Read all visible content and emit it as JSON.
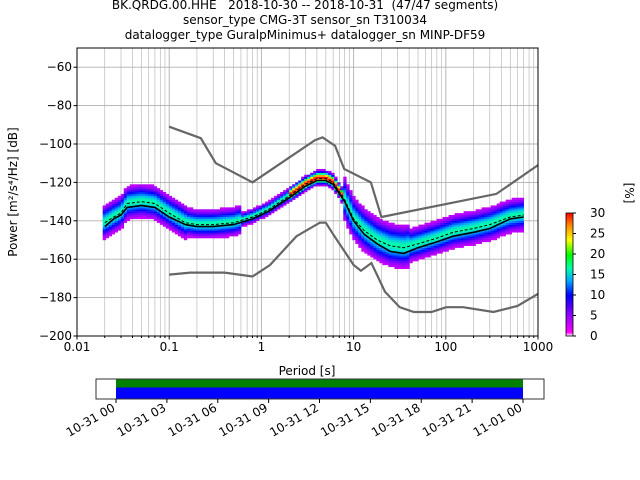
{
  "title_lines": [
    "BK.QRDG.00.HHE   2018-10-30 -- 2018-10-31  (47/47 segments)",
    "sensor_type CMG-3T sensor_sn T310034",
    "datalogger_type GuralpMinimus+ datalogger_sn MINP-DF59"
  ],
  "chart_data": {
    "type": "ppsd_heatmap",
    "xlabel": "Period [s]",
    "ylabel": "Power [m²/s⁴/Hz] [dB]",
    "xscale": "log",
    "xlim": [
      0.01,
      1000
    ],
    "ylim": [
      -200,
      -50
    ],
    "x_ticks": [
      0.01,
      0.1,
      1,
      10,
      100,
      1000
    ],
    "x_tick_labels": [
      "0.01",
      "0.1",
      "1",
      "10",
      "100",
      "1000"
    ],
    "y_ticks": [
      -200,
      -180,
      -160,
      -140,
      -120,
      -100,
      -80,
      -60
    ],
    "y_tick_labels": [
      "−200",
      "−180",
      "−160",
      "−140",
      "−120",
      "−100",
      "−80",
      "−60"
    ],
    "grid": true,
    "mean_curve": [
      [
        0.02,
        -143
      ],
      [
        0.025,
        -139
      ],
      [
        0.03,
        -137
      ],
      [
        0.035,
        -133
      ],
      [
        0.05,
        -132
      ],
      [
        0.07,
        -133
      ],
      [
        0.1,
        -138
      ],
      [
        0.15,
        -142
      ],
      [
        0.2,
        -143
      ],
      [
        0.3,
        -143
      ],
      [
        0.5,
        -142
      ],
      [
        0.8,
        -139
      ],
      [
        1.2,
        -135
      ],
      [
        2,
        -128
      ],
      [
        3,
        -122
      ],
      [
        4,
        -119
      ],
      [
        5,
        -119
      ],
      [
        6,
        -121
      ],
      [
        8,
        -130
      ],
      [
        10,
        -140
      ],
      [
        13,
        -147
      ],
      [
        18,
        -152
      ],
      [
        25,
        -156
      ],
      [
        35,
        -157
      ],
      [
        50,
        -154
      ],
      [
        80,
        -151
      ],
      [
        120,
        -148
      ],
      [
        200,
        -146
      ],
      [
        300,
        -144
      ],
      [
        500,
        -139
      ],
      [
        700,
        -138
      ]
    ],
    "mode_curve": [
      [
        0.02,
        -141
      ],
      [
        0.025,
        -138
      ],
      [
        0.03,
        -136
      ],
      [
        0.035,
        -131
      ],
      [
        0.05,
        -130
      ],
      [
        0.07,
        -131
      ],
      [
        0.1,
        -136
      ],
      [
        0.15,
        -141
      ],
      [
        0.2,
        -142
      ],
      [
        0.3,
        -142
      ],
      [
        0.5,
        -141
      ],
      [
        0.8,
        -138
      ],
      [
        1.2,
        -134
      ],
      [
        2,
        -127
      ],
      [
        3,
        -121
      ],
      [
        4,
        -118
      ],
      [
        5,
        -118
      ],
      [
        6,
        -120
      ],
      [
        8,
        -129
      ],
      [
        10,
        -139
      ],
      [
        13,
        -145
      ],
      [
        18,
        -150
      ],
      [
        25,
        -153
      ],
      [
        35,
        -154
      ],
      [
        50,
        -152
      ],
      [
        80,
        -149
      ],
      [
        120,
        -146
      ],
      [
        200,
        -144
      ],
      [
        300,
        -142
      ],
      [
        500,
        -138
      ],
      [
        700,
        -137
      ]
    ],
    "nhnm": [
      [
        0.1,
        -91
      ],
      [
        0.22,
        -97
      ],
      [
        0.32,
        -110
      ],
      [
        0.8,
        -120
      ],
      [
        3.8,
        -98
      ],
      [
        4.6,
        -96.5
      ],
      [
        6.3,
        -101
      ],
      [
        7.9,
        -113
      ],
      [
        15.4,
        -120
      ],
      [
        20,
        -138
      ],
      [
        354,
        -126
      ],
      [
        1000,
        -111
      ]
    ],
    "nlnm": [
      [
        0.1,
        -168
      ],
      [
        0.17,
        -167
      ],
      [
        0.4,
        -167
      ],
      [
        0.8,
        -169
      ],
      [
        1.24,
        -163
      ],
      [
        2.4,
        -148
      ],
      [
        4.3,
        -141
      ],
      [
        5,
        -141
      ],
      [
        6,
        -147
      ],
      [
        10,
        -163
      ],
      [
        12,
        -166
      ],
      [
        15.6,
        -162
      ],
      [
        21.9,
        -177
      ],
      [
        31.6,
        -185
      ],
      [
        45,
        -187.5
      ],
      [
        70,
        -187.5
      ],
      [
        101,
        -185
      ],
      [
        154,
        -185
      ],
      [
        328,
        -187.5
      ],
      [
        600,
        -184.4
      ],
      [
        1000,
        -178
      ]
    ],
    "colorbar": {
      "label": "[%]",
      "range": [
        0,
        30
      ],
      "ticks": [
        0,
        5,
        10,
        15,
        20,
        25,
        30
      ],
      "tick_labels": [
        "0",
        "5",
        "10",
        "15",
        "20",
        "25",
        "30"
      ]
    },
    "timeline": {
      "tick_labels": [
        "10-31 00",
        "10-31 03",
        "10-31 06",
        "10-31 09",
        "10-31 12",
        "10-31 15",
        "10-31 18",
        "10-31 21",
        "11-01 00"
      ],
      "coverage_colors": [
        "#008000",
        "#0000ff"
      ]
    }
  }
}
